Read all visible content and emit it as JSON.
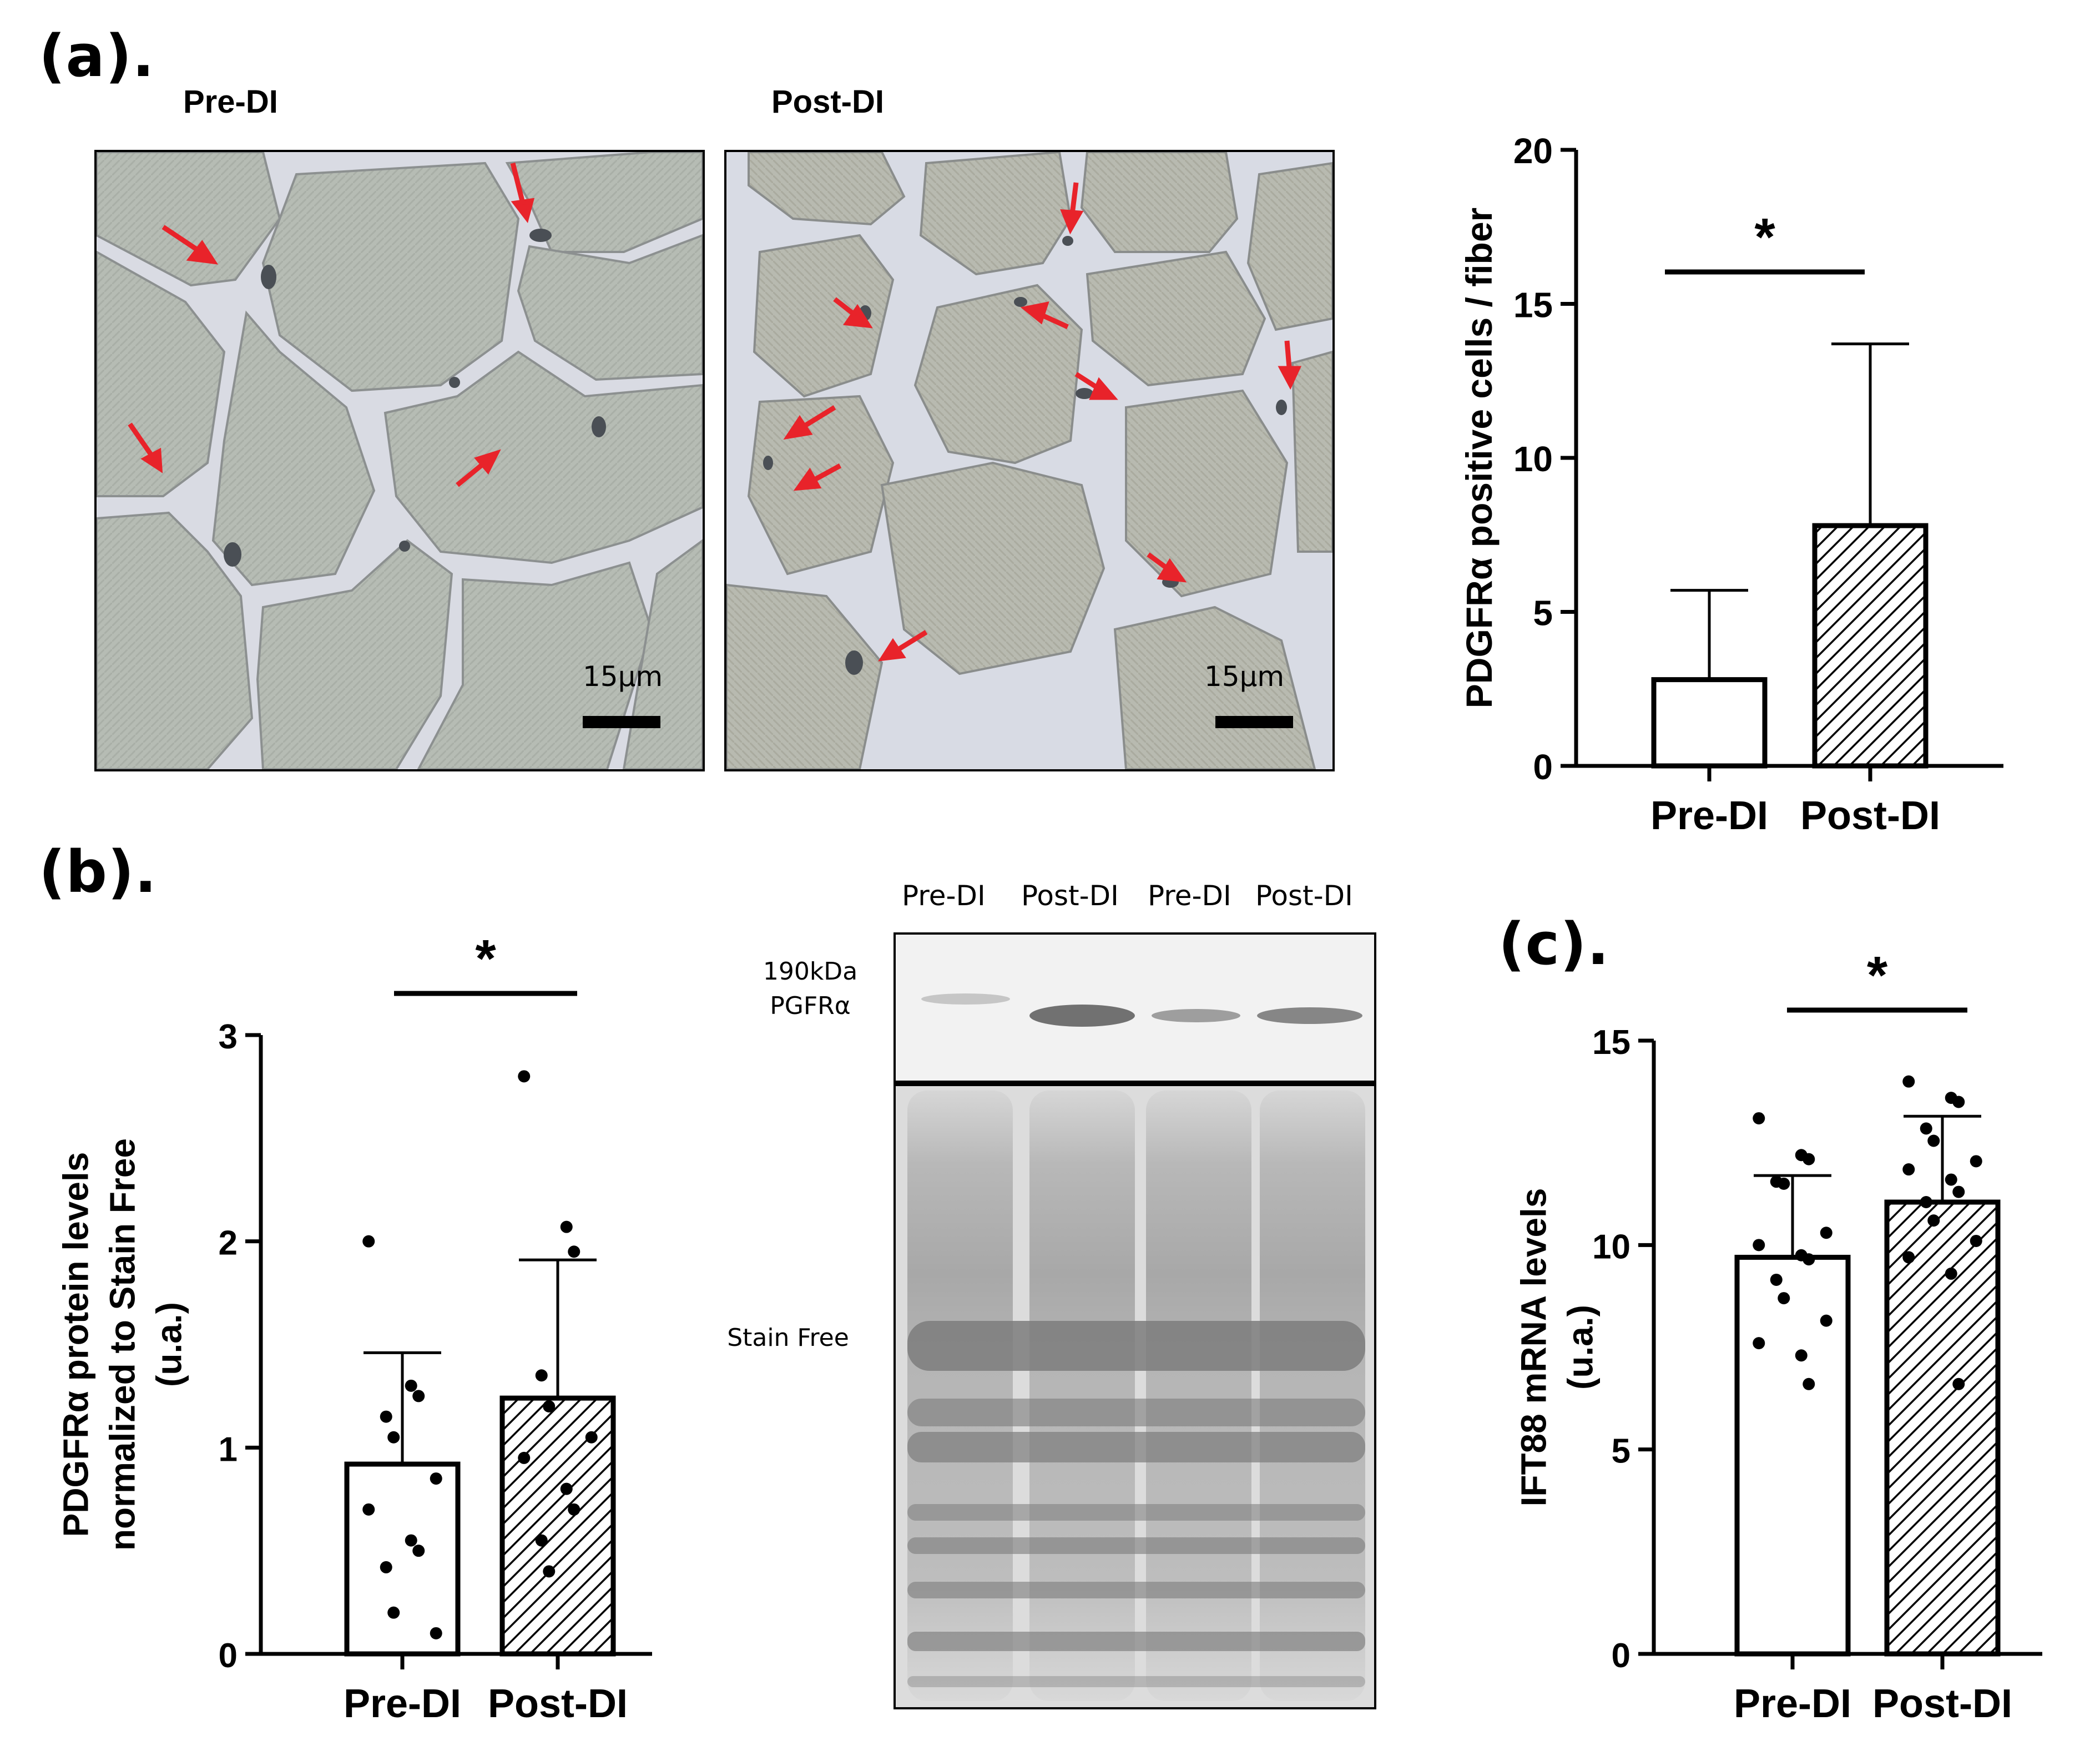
{
  "panels": {
    "a": "(a).",
    "b": "(b).",
    "c": "(c)."
  },
  "micrographs": [
    {
      "title": "Pre-DI",
      "scale": "15µm"
    },
    {
      "title": "Post-DI",
      "scale": "15µm"
    }
  ],
  "blot": {
    "lanes": [
      "Pre-DI",
      "Post-DI",
      "Pre-DI",
      "Post-DI"
    ],
    "band_label_line1": "190kDa",
    "band_label_line2": "PGFRα",
    "stain_label": "Stain Free"
  },
  "colors": {
    "arrow": "#e8232a",
    "tissue": "#b8bdb5",
    "interstitium": "#dcdde6",
    "bar_fill_pre": "#ffffff",
    "bar_fill_post": "hatched"
  },
  "chart_data": [
    {
      "id": "a",
      "type": "bar",
      "categories": [
        "Pre-DI",
        "Post-DI"
      ],
      "values": [
        2.8,
        7.8
      ],
      "error_upper": [
        5.7,
        13.7
      ],
      "ylabel": "PDGFRα positive cells / fiber",
      "ylim": [
        0,
        20
      ],
      "yticks": [
        0,
        5,
        10,
        15,
        20
      ],
      "significance": "*",
      "points": [
        [],
        []
      ]
    },
    {
      "id": "b",
      "type": "bar",
      "categories": [
        "Pre-DI",
        "Post-DI"
      ],
      "values": [
        0.92,
        1.24
      ],
      "error_upper": [
        1.46,
        1.91
      ],
      "ylabel_lines": [
        "PDGFRα protein levels",
        "normalized to Stain Free",
        "(u.a.)"
      ],
      "ylim": [
        0,
        3
      ],
      "yticks": [
        0,
        1,
        2,
        3
      ],
      "significance": "*",
      "points": [
        [
          2.0,
          1.3,
          1.25,
          1.15,
          1.05,
          0.85,
          0.7,
          0.55,
          0.5,
          0.42,
          0.2,
          0.1
        ],
        [
          2.8,
          2.07,
          1.95,
          1.35,
          1.2,
          1.05,
          0.95,
          0.8,
          0.7,
          0.55,
          0.4
        ]
      ]
    },
    {
      "id": "c",
      "type": "bar",
      "categories": [
        "Pre-DI",
        "Post-DI"
      ],
      "values": [
        9.7,
        11.05
      ],
      "error_upper": [
        11.7,
        13.15
      ],
      "ylabel_lines": [
        "IFT88 mRNA levels",
        "(u.a.)"
      ],
      "ylim": [
        0,
        15
      ],
      "yticks": [
        0,
        5,
        10,
        15
      ],
      "significance": "*",
      "points": [
        [
          13.1,
          12.2,
          12.1,
          11.55,
          11.5,
          10.3,
          10.0,
          9.75,
          9.65,
          9.15,
          8.7,
          8.15,
          7.6,
          7.3,
          6.6
        ],
        [
          14.0,
          13.6,
          13.5,
          12.85,
          12.55,
          12.05,
          11.85,
          11.6,
          11.3,
          11.05,
          10.6,
          10.1,
          9.7,
          9.3,
          6.6
        ]
      ]
    }
  ]
}
